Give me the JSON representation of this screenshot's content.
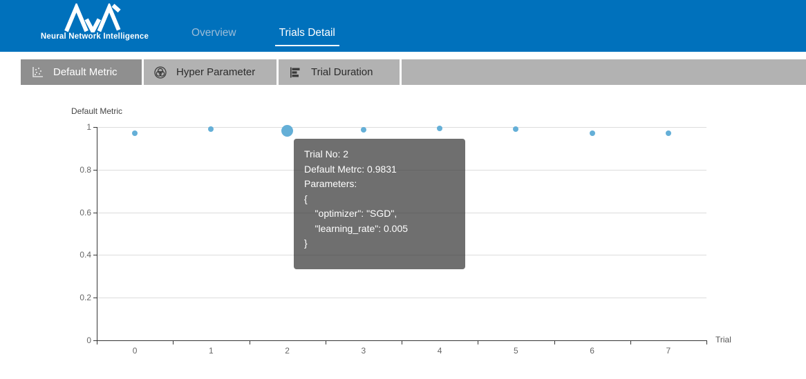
{
  "header": {
    "logo_title": "Neural Network Intelligence",
    "brand_color": "#0071bc",
    "tabs": [
      {
        "label": "Overview",
        "active": false
      },
      {
        "label": "Trials Detail",
        "active": true
      }
    ]
  },
  "subtabs": {
    "active_bg": "#8f8f8f",
    "inactive_bg": "#b2b2b2",
    "items": [
      {
        "label": "Default Metric",
        "icon": "scatter-chart-icon",
        "active": true
      },
      {
        "label": "Hyper Parameter",
        "icon": "venn-diagram-icon",
        "active": false
      },
      {
        "label": "Trial Duration",
        "icon": "bar-chart-icon",
        "active": false
      }
    ]
  },
  "chart_data": {
    "type": "scatter",
    "title": "Default Metric",
    "xlabel": "Trial",
    "ylabel": "",
    "categories": [
      "0",
      "1",
      "2",
      "3",
      "4",
      "5",
      "6",
      "7"
    ],
    "values": [
      0.97,
      0.991,
      0.9831,
      0.986,
      0.992,
      0.989,
      0.97,
      0.97
    ],
    "ylim": [
      0,
      1
    ],
    "yticks": [
      0,
      0.2,
      0.4,
      0.6,
      0.8,
      1
    ],
    "ytick_labels": [
      "0",
      "0.2",
      "0.4",
      "0.6",
      "0.8",
      "1"
    ],
    "grid": true,
    "legend": null,
    "point_color": "#64afd7",
    "hovered_index": 2,
    "hovered_value": 0.9831
  },
  "tooltip": {
    "bg_color": "rgba(50,50,50,0.7)",
    "lines": [
      "Trial No: 2",
      "Default Metrc: 0.9831",
      "Parameters:",
      "{",
      "    \"optimizer\": \"SGD\",",
      "    \"learning_rate\": 0.005",
      "}"
    ]
  }
}
